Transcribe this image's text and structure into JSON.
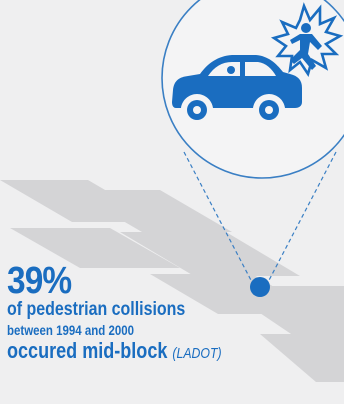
{
  "infographic": {
    "percent": "39%",
    "line1": "of pedestrian collisions",
    "line2": "between 1994 and 2000",
    "line3": "occured mid-block",
    "source": "(LADOT)"
  },
  "colors": {
    "background": "#efeff0",
    "accent": "#1a6dc0",
    "stripes": "#d4d4d6",
    "outline": "#3a7fc4"
  },
  "icons": {
    "main": "car-collision-icon",
    "pedestrian": "pedestrian-icon",
    "impact": "impact-burst-icon",
    "marker": "location-dot-icon"
  }
}
